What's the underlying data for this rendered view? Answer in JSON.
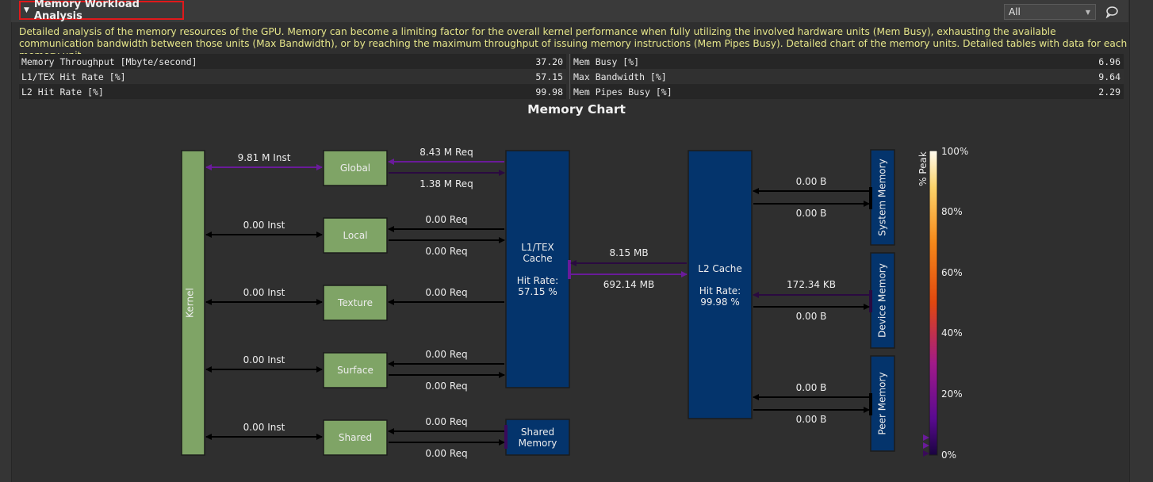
{
  "section": {
    "title": "Memory Workload Analysis",
    "filter_value": "All",
    "description": "Detailed analysis of the memory resources of the GPU. Memory can become a limiting factor for the overall kernel performance when fully utilizing the involved hardware units (Mem Busy), exhausting the available communication bandwidth between those units (Max Bandwidth), or by reaching the maximum throughput of issuing memory instructions (Mem Pipes Busy). Detailed chart of the memory units. Detailed tables with data for each memory unit."
  },
  "metrics": {
    "left": [
      {
        "label": "Memory Throughput [Mbyte/second]",
        "value": "37.20"
      },
      {
        "label": "L1/TEX Hit Rate [%]",
        "value": "57.15"
      },
      {
        "label": "L2 Hit Rate [%]",
        "value": "99.98"
      }
    ],
    "right": [
      {
        "label": "Mem Busy [%]",
        "value": "6.96"
      },
      {
        "label": "Max Bandwidth [%]",
        "value": "9.64"
      },
      {
        "label": "Mem Pipes Busy [%]",
        "value": "2.29"
      }
    ]
  },
  "chart": {
    "title": "Memory Chart",
    "kernel": "Kernel",
    "units": [
      "Global",
      "Local",
      "Texture",
      "Surface",
      "Shared"
    ],
    "inst": [
      "9.81 M Inst",
      "0.00 Inst",
      "0.00 Inst",
      "0.00 Inst",
      "0.00 Inst"
    ],
    "req_top": [
      "8.43 M Req",
      "0.00 Req",
      "0.00 Req",
      "0.00 Req",
      "0.00 Req"
    ],
    "req_bottom": [
      "1.38 M Req",
      "0.00 Req",
      "0.00 Req",
      "0.00 Req"
    ],
    "l1": {
      "name_line1": "L1/TEX",
      "name_line2": "Cache",
      "hit_label": "Hit Rate:",
      "hit_value": "57.15 %"
    },
    "shared_memory": {
      "line1": "Shared",
      "line2": "Memory"
    },
    "l1_l2": {
      "top": "8.15 MB",
      "bottom": "692.14 MB"
    },
    "l2": {
      "name": "L2 Cache",
      "hit_label": "Hit Rate:",
      "hit_value": "99.98 %"
    },
    "memories": [
      {
        "name": "System Memory",
        "top": "0.00 B",
        "bottom": "0.00 B"
      },
      {
        "name": "Device Memory",
        "top": "172.34 KB",
        "bottom": "0.00 B"
      },
      {
        "name": "Peer Memory",
        "top": "0.00 B",
        "bottom": "0.00 B"
      }
    ],
    "colorbar": {
      "title": "% Peak",
      "ticks": [
        "100%",
        "80%",
        "60%",
        "40%",
        "20%",
        "0%"
      ]
    },
    "colors": {
      "unit_fill": "#7fa466",
      "cache_fill": "#04346c",
      "active_arrow": "#6a1b9a",
      "idle_arrow": "#000000"
    }
  }
}
